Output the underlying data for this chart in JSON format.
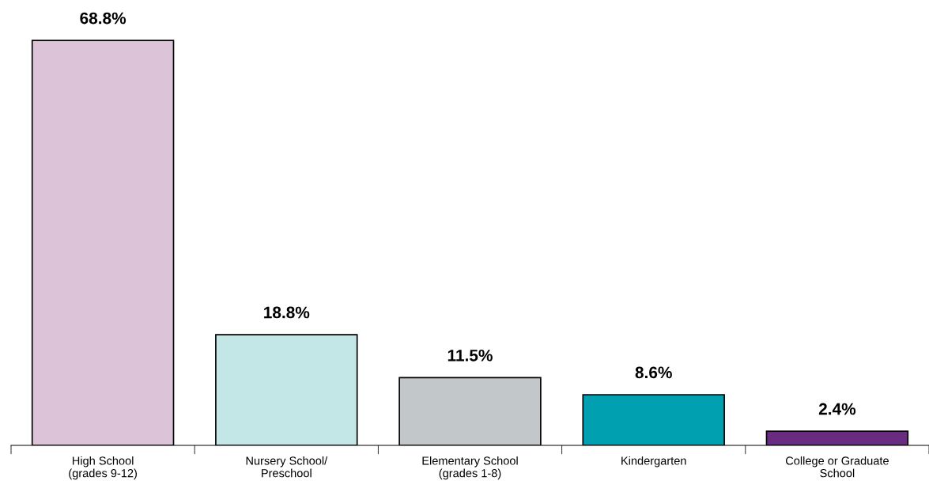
{
  "chart_data": {
    "type": "bar",
    "categories": [
      "High School\n(grades 9-12)",
      "Nursery School/\nPreschool",
      "Elementary School\n(grades 1-8)",
      "Kindergarten",
      "College or Graduate\nSchool"
    ],
    "values": [
      68.8,
      18.8,
      11.5,
      8.6,
      2.4
    ],
    "colors": [
      "#dcc3d8",
      "#c3e7e6",
      "#c2c7c9",
      "#00a0b0",
      "#6a2c80"
    ],
    "value_labels": [
      "68.8%",
      "18.8%",
      "11.5%",
      "8.6%",
      "2.4%"
    ],
    "grid": false,
    "legend": false
  }
}
